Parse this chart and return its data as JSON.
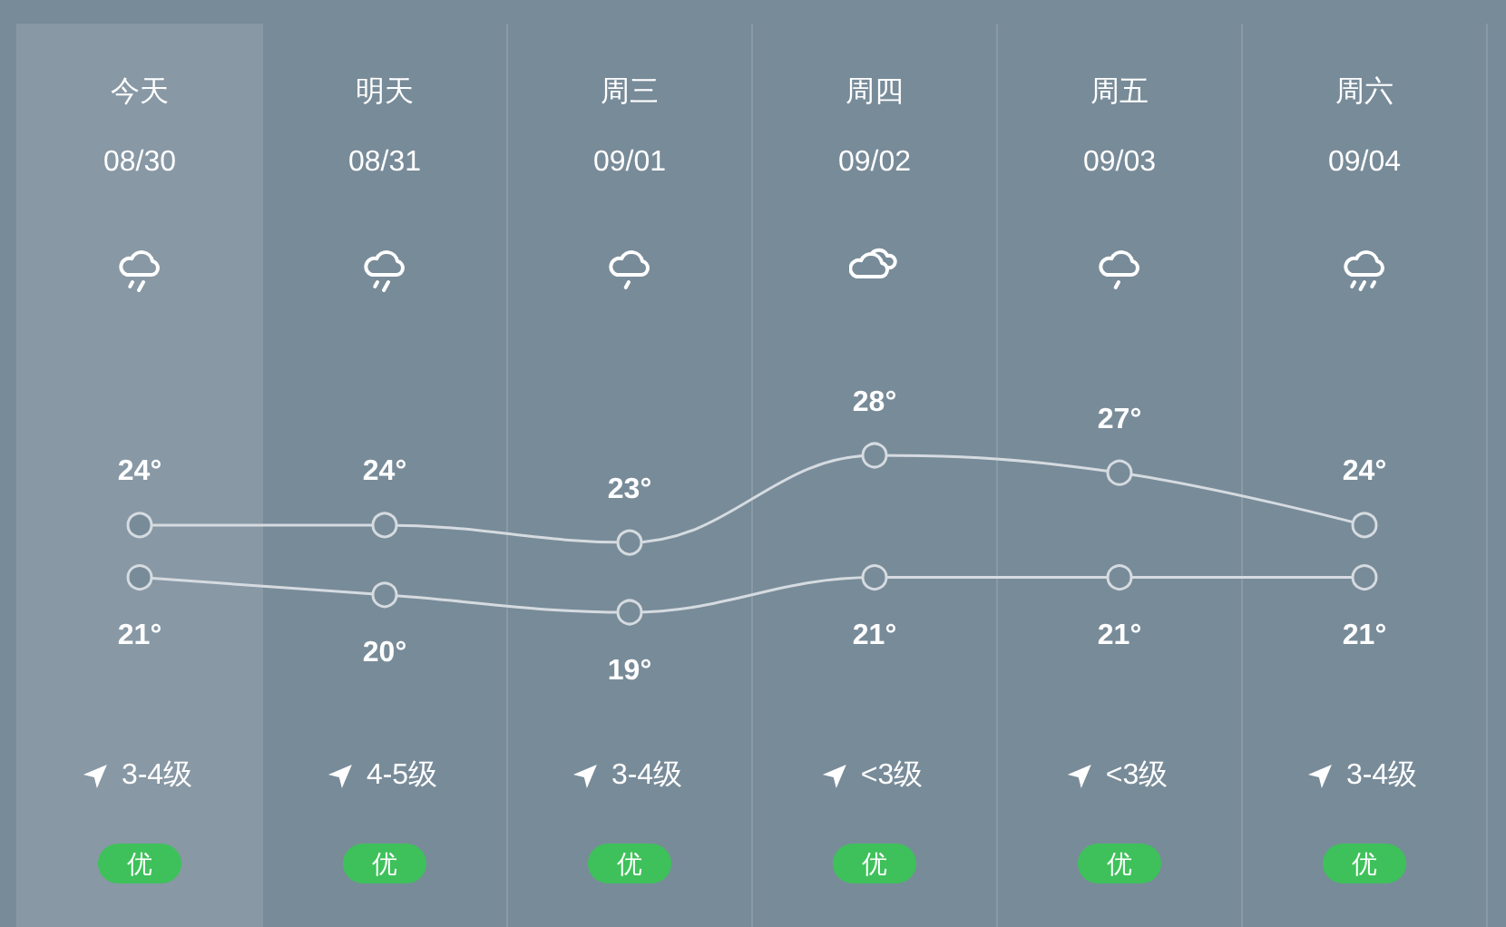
{
  "chart_data": {
    "type": "line",
    "categories": [
      "今天",
      "明天",
      "周三",
      "周四",
      "周五",
      "周六"
    ],
    "series": [
      {
        "color": "#d5dbe0",
        "values": [
          24,
          24,
          23,
          28,
          27,
          24
        ],
        "value_labels": [
          "24°",
          "24°",
          "23°",
          "28°",
          "27°",
          "24°"
        ]
      },
      {
        "color": "#d5dbe0",
        "values": [
          21,
          20,
          19,
          21,
          21,
          21
        ],
        "value_labels": [
          "21°",
          "20°",
          "19°",
          "21°",
          "21°",
          "21°"
        ]
      }
    ],
    "annotations": [
      "08/30",
      "08/31",
      "09/01",
      "09/02",
      "09/03",
      "09/04",
      "3-4级",
      "4-5级",
      "3-4级",
      "<3级",
      "<3级",
      "3-4级",
      "优",
      "优",
      "优",
      "优",
      "优",
      "优"
    ],
    "bands": [
      {
        "axis": "x",
        "from": "今天",
        "to": "今天",
        "color": "#8898a5"
      }
    ],
    "marker": "circle",
    "line_style": "solid",
    "grid": "x",
    "tick_labels": "x"
  }
}
